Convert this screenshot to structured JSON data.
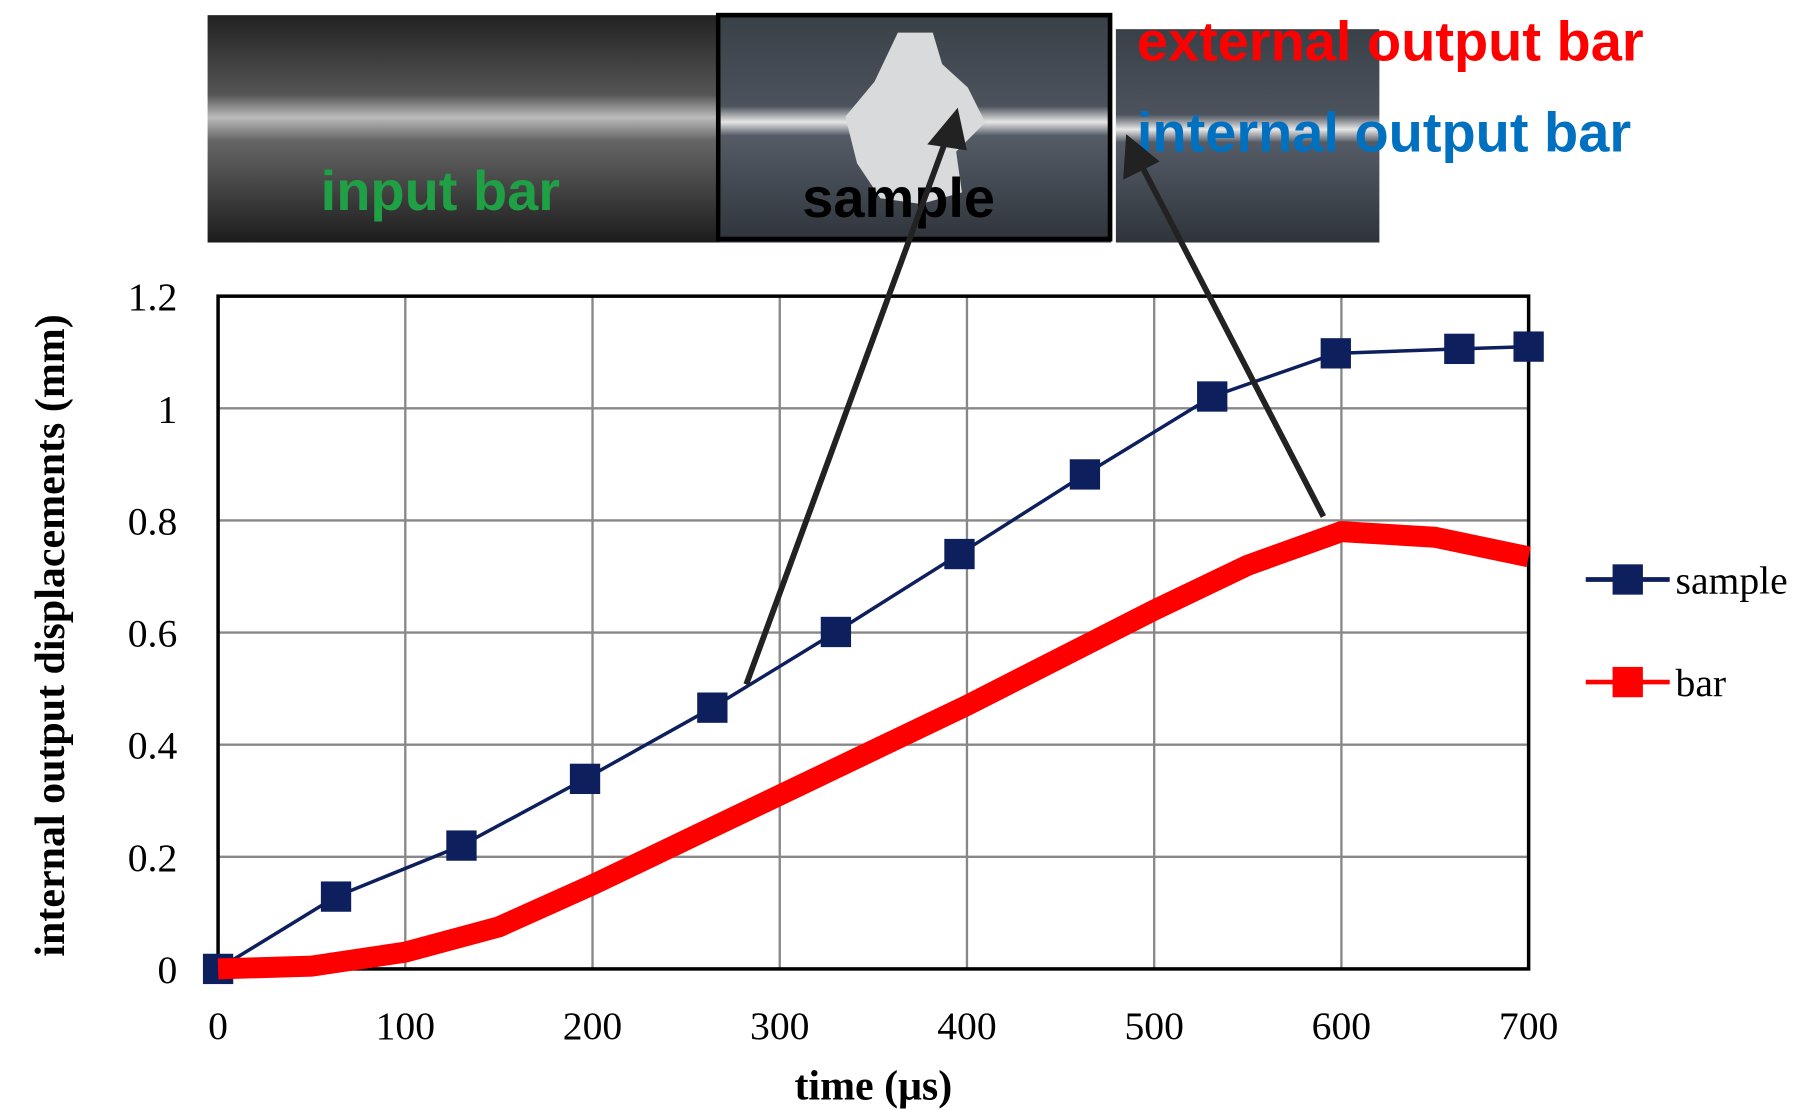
{
  "photo": {
    "labels": {
      "input": "input bar",
      "sample": "sample",
      "external": "external output bar",
      "internal": "internal output bar"
    }
  },
  "chart_data": {
    "type": "line",
    "xlabel": "time (μs)",
    "ylabel": "internal output displacements (mm)",
    "xlim": [
      0,
      700
    ],
    "xticks": [
      0,
      100,
      200,
      300,
      400,
      500,
      600,
      700
    ],
    "ylim": [
      0,
      1.2
    ],
    "yticks": [
      0,
      0.2,
      0.4,
      0.6,
      0.8,
      1,
      1.2
    ],
    "grid": true,
    "legend": "right",
    "series": [
      {
        "name": "sample",
        "color": "#0d1f5c",
        "markers": true,
        "x": [
          0,
          63,
          130,
          196,
          264,
          330,
          396,
          463,
          531,
          597,
          663,
          700
        ],
        "values": [
          0,
          0.129,
          0.22,
          0.339,
          0.466,
          0.601,
          0.74,
          0.882,
          1.021,
          1.098,
          1.106,
          1.11
        ]
      },
      {
        "name": "bar",
        "color": "#ff0000",
        "markers": false,
        "x": [
          0,
          50,
          100,
          150,
          200,
          250,
          300,
          350,
          400,
          450,
          500,
          550,
          600,
          650,
          700
        ],
        "values": [
          0,
          0.005,
          0.03,
          0.075,
          0.15,
          0.23,
          0.31,
          0.39,
          0.47,
          0.555,
          0.64,
          0.72,
          0.78,
          0.77,
          0.735
        ]
      }
    ]
  }
}
